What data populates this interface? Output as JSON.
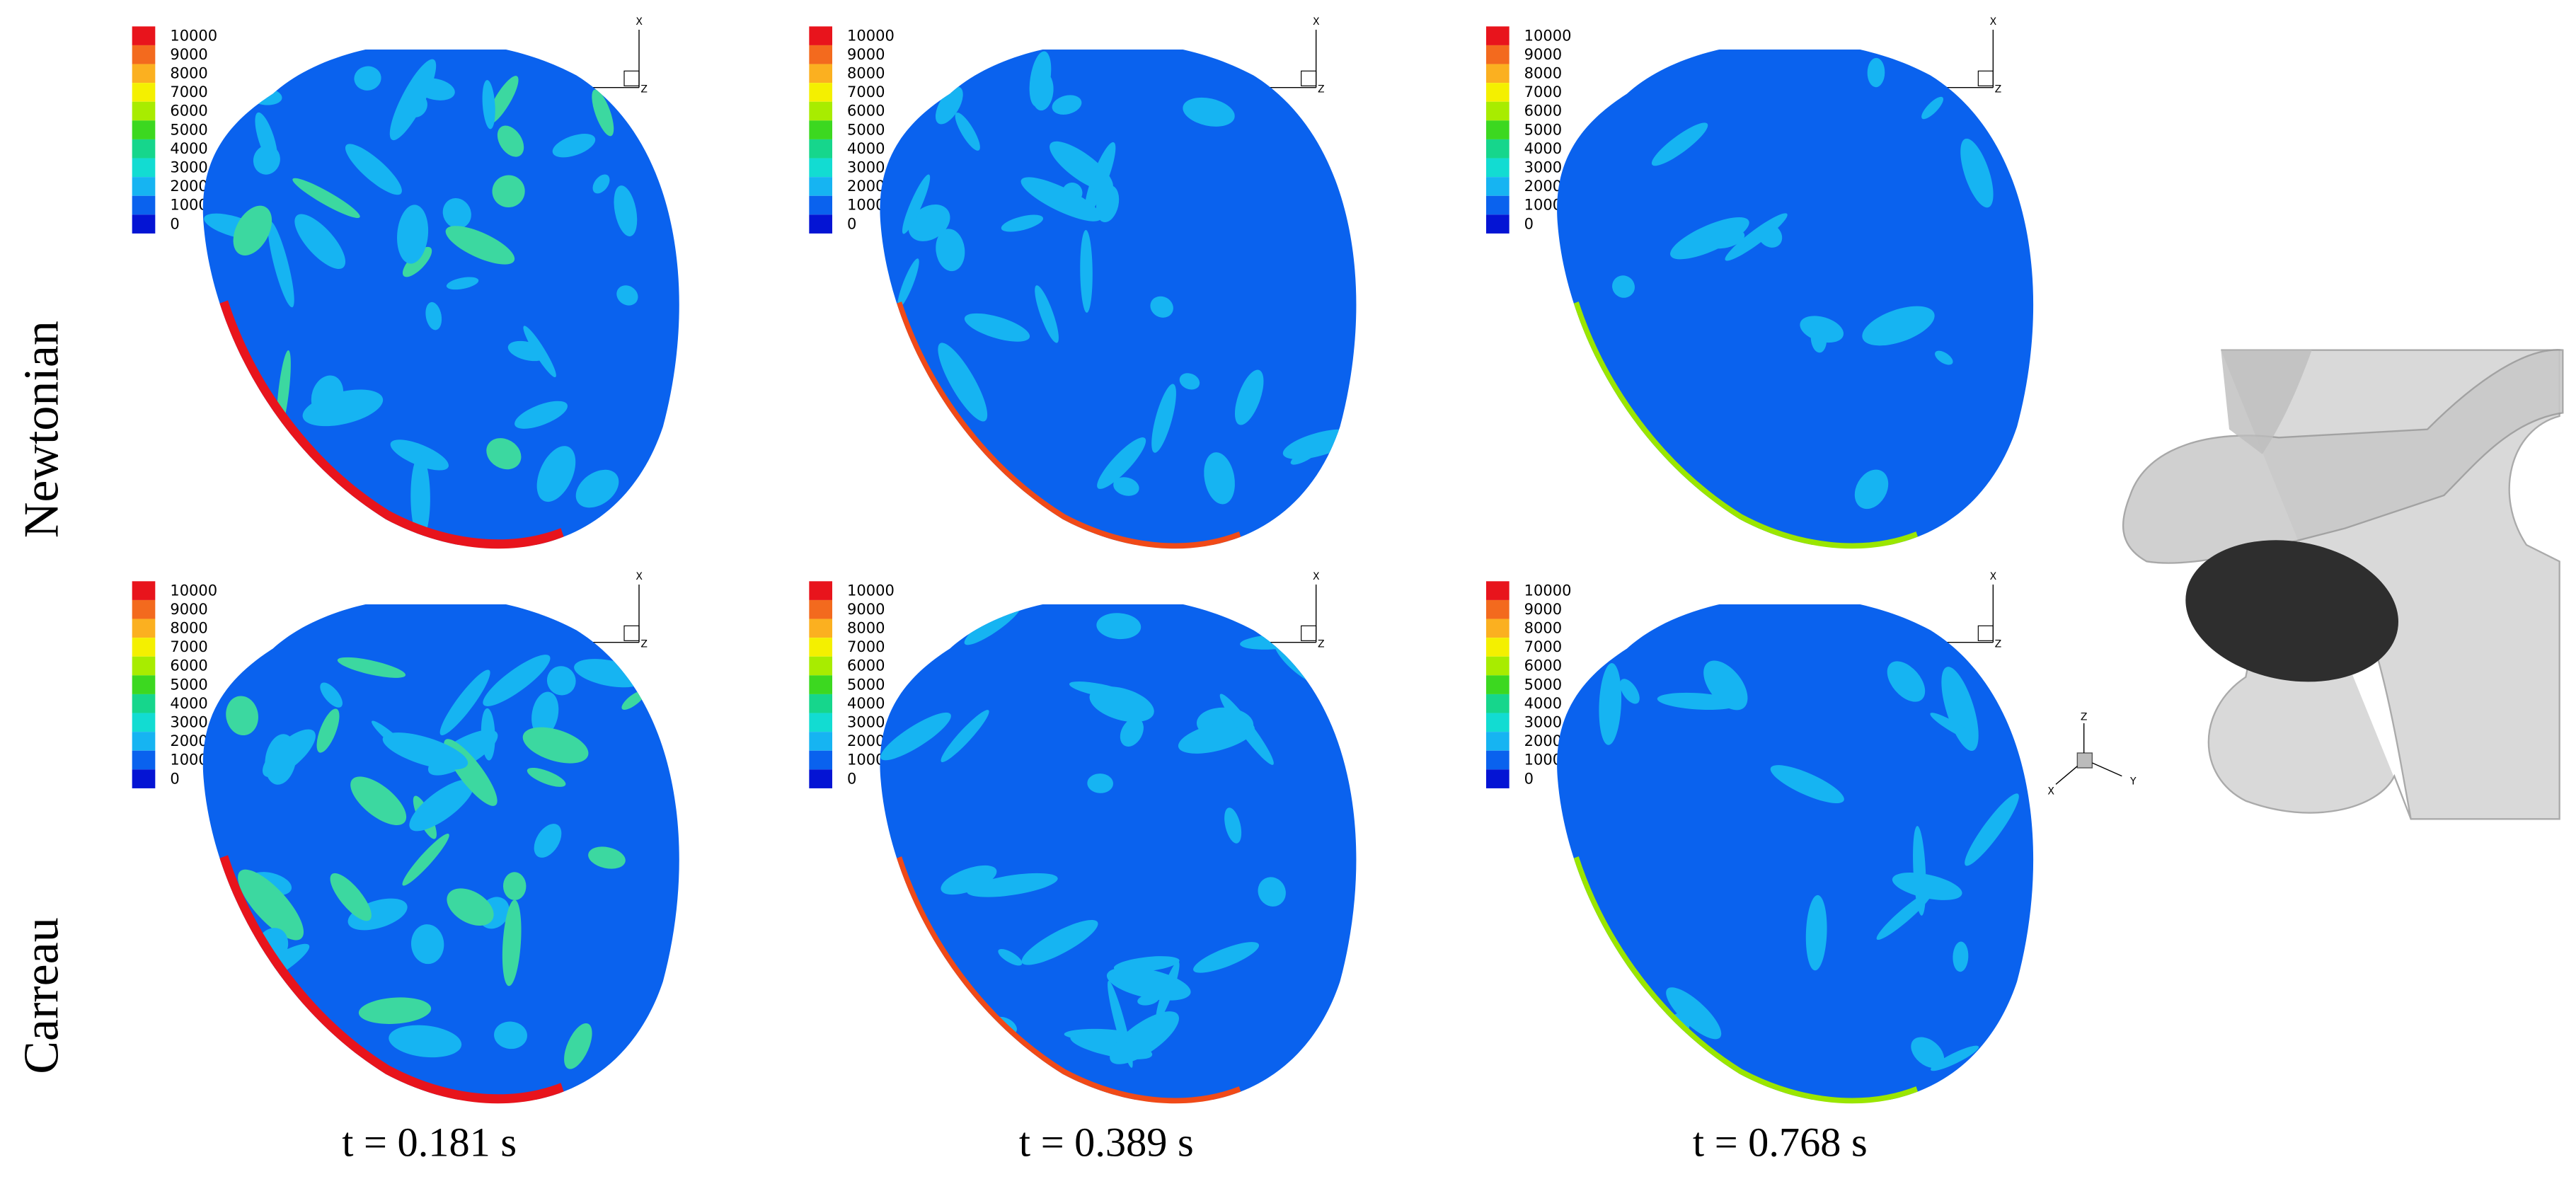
{
  "row_labels": [
    "Newtonian",
    "Carreau"
  ],
  "time_labels": [
    "t = 0.181 s",
    "t = 0.389 s",
    "t = 0.768 s"
  ],
  "legend": {
    "levels": [
      10000,
      9000,
      8000,
      7000,
      6000,
      5000,
      4000,
      3000,
      2000,
      1000,
      0
    ],
    "colors": [
      "#e8141c",
      "#f36a1e",
      "#fbb020",
      "#f4f000",
      "#a8ec00",
      "#3cd820",
      "#16d68c",
      "#12dcd2",
      "#16b4f2",
      "#0a62ee",
      "#0414d4"
    ]
  },
  "triad": {
    "x": "X",
    "y": "Y",
    "z": "Z"
  }
}
